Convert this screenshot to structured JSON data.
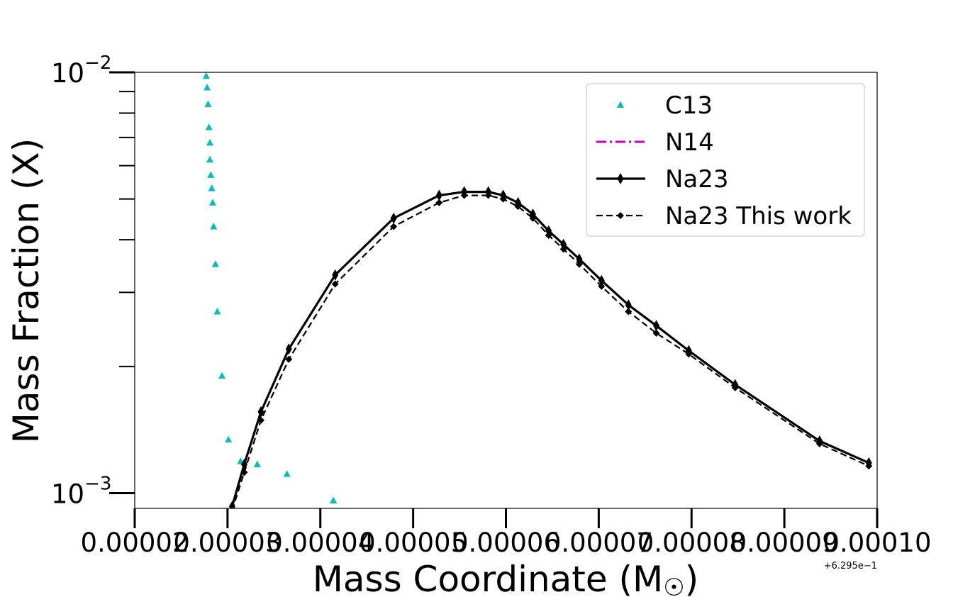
{
  "chart_data": {
    "type": "line",
    "xlabel": "Mass Coordinate (M",
    "xlabel_symbol": "☉",
    "xlabel_close": ")",
    "ylabel": "Mass Fraction (X)",
    "x_offset_label": "+6.295e−1",
    "yscale": "log",
    "xlim": [
      2e-05,
      0.0001
    ],
    "ylim": [
      0.00092,
      0.01
    ],
    "xticks": [
      {
        "value": 2e-05,
        "label": "0.00002"
      },
      {
        "value": 3e-05,
        "label": "0.00003"
      },
      {
        "value": 4e-05,
        "label": "0.00004"
      },
      {
        "value": 5e-05,
        "label": "0.00005"
      },
      {
        "value": 6e-05,
        "label": "0.00006"
      },
      {
        "value": 7e-05,
        "label": "0.00007"
      },
      {
        "value": 8e-05,
        "label": "0.00008"
      },
      {
        "value": 9e-05,
        "label": "0.00009"
      },
      {
        "value": 0.0001,
        "label": "0.00010"
      }
    ],
    "yticks_major": [
      {
        "value": 0.01,
        "base": "10",
        "exp": "−2"
      },
      {
        "value": 0.001,
        "base": "10",
        "exp": "−3"
      }
    ],
    "yticks_minor": [
      0.002,
      0.003,
      0.004,
      0.005,
      0.006,
      0.007,
      0.008,
      0.009
    ],
    "grid": false,
    "legend_position": "top-right",
    "series": [
      {
        "name": "C13",
        "style": "markers",
        "marker": "triangle",
        "color": "#00bfbf",
        "x": [
          2.77e-05,
          2.78e-05,
          2.79e-05,
          2.8e-05,
          2.81e-05,
          2.81e-05,
          2.82e-05,
          2.83e-05,
          2.84e-05,
          2.85e-05,
          2.87e-05,
          2.89e-05,
          2.94e-05,
          3.01e-05,
          3.14e-05,
          3.32e-05,
          3.64e-05,
          4.14e-05
        ],
        "y": [
          0.0098,
          0.0092,
          0.0084,
          0.0074,
          0.0068,
          0.0062,
          0.0057,
          0.0053,
          0.0049,
          0.0043,
          0.0035,
          0.0027,
          0.0019,
          0.00134,
          0.00119,
          0.00117,
          0.00111,
          0.00096
        ]
      },
      {
        "name": "N14",
        "style": "dashdot",
        "color": "#bf00bf",
        "x": [],
        "y": []
      },
      {
        "name": "Na23",
        "style": "solid",
        "marker": "thin_diamond",
        "color": "#000000",
        "x": [
          3.05e-05,
          3.18e-05,
          3.36e-05,
          3.66e-05,
          4.16e-05,
          4.79e-05,
          5.28e-05,
          5.55e-05,
          5.81e-05,
          5.97e-05,
          6.13e-05,
          6.29e-05,
          6.46e-05,
          6.62e-05,
          6.79e-05,
          7.03e-05,
          7.32e-05,
          7.62e-05,
          7.97e-05,
          8.47e-05,
          9.38e-05,
          9.91e-05
        ],
        "y": [
          0.00093,
          0.00117,
          0.00156,
          0.0022,
          0.0033,
          0.0045,
          0.0051,
          0.0052,
          0.0052,
          0.0051,
          0.0049,
          0.0046,
          0.0042,
          0.0039,
          0.0036,
          0.0032,
          0.0028,
          0.0025,
          0.00218,
          0.00181,
          0.00133,
          0.00118
        ]
      },
      {
        "name": "Na23 This work",
        "style": "dashed",
        "marker": "diamond",
        "color": "#000000",
        "x": [
          3.05e-05,
          3.18e-05,
          3.36e-05,
          3.66e-05,
          4.16e-05,
          4.79e-05,
          5.28e-05,
          5.55e-05,
          5.81e-05,
          5.97e-05,
          6.13e-05,
          6.29e-05,
          6.46e-05,
          6.62e-05,
          6.79e-05,
          7.03e-05,
          7.32e-05,
          7.62e-05,
          7.97e-05,
          8.47e-05,
          9.38e-05,
          9.91e-05
        ],
        "y": [
          0.00091,
          0.00112,
          0.00149,
          0.00208,
          0.00314,
          0.0043,
          0.0049,
          0.0051,
          0.0051,
          0.005,
          0.0048,
          0.0045,
          0.0041,
          0.0038,
          0.0035,
          0.0031,
          0.0027,
          0.0024,
          0.00214,
          0.00178,
          0.00131,
          0.00116
        ]
      }
    ]
  }
}
